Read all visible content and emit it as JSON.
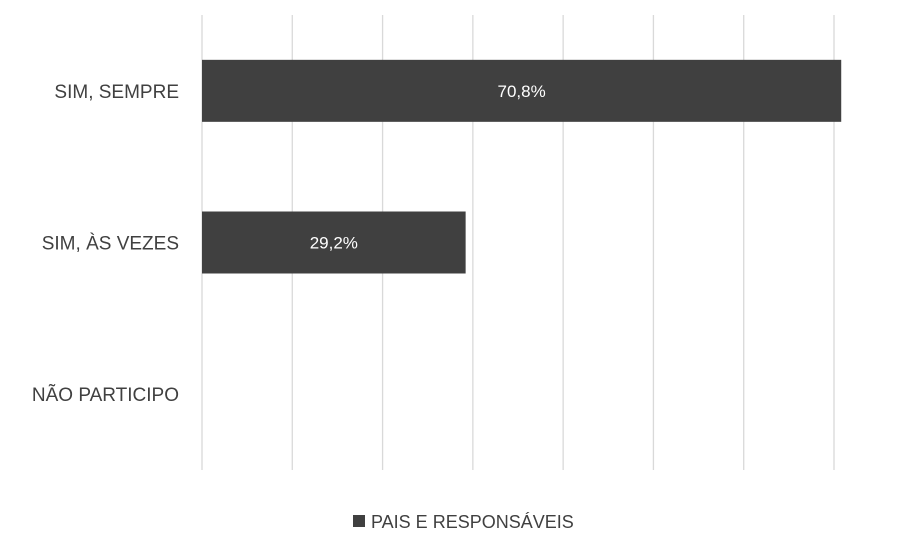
{
  "chart_data": {
    "type": "bar",
    "orientation": "horizontal",
    "categories": [
      "SIM, SEMPRE",
      "SIM, ÀS VEZES",
      "NÃO PARTICIPO"
    ],
    "series": [
      {
        "name": "PAIS E RESPONSÁVEIS",
        "values": [
          70.8,
          29.2,
          0
        ],
        "data_labels": [
          "70,8%",
          "29,2%",
          ""
        ]
      }
    ],
    "xlim": [
      0,
      70
    ],
    "x_gridlines": 8,
    "grid": true,
    "legend": "bottom",
    "colors": {
      "bar": "#404040",
      "grid": "#d9d9d9",
      "text": "#404040",
      "label": "#ffffff"
    }
  }
}
